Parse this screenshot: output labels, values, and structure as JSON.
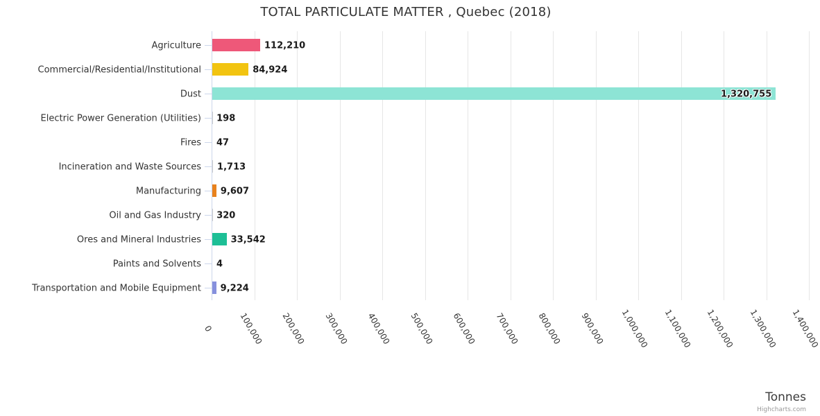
{
  "title": "TOTAL PARTICULATE MATTER , Quebec (2018)",
  "credits_label": "Highcharts.com",
  "chart_data": {
    "type": "bar",
    "title": "TOTAL PARTICULATE MATTER , Quebec (2018)",
    "orientation": "horizontal",
    "categories": [
      "Agriculture",
      "Commercial/Residential/Institutional",
      "Dust",
      "Electric Power Generation (Utilities)",
      "Fires",
      "Incineration and Waste Sources",
      "Manufacturing",
      "Oil and Gas Industry",
      "Ores and Mineral Industries",
      "Paints and Solvents",
      "Transportation and Mobile Equipment"
    ],
    "values": [
      112210,
      84924,
      1320755,
      198,
      47,
      1713,
      9607,
      320,
      33542,
      4,
      9224
    ],
    "value_labels": [
      "112,210",
      "84,924",
      "1,320,755",
      "198",
      "47",
      "1,713",
      "9,607",
      "320",
      "33,542",
      "4",
      "9,224"
    ],
    "bar_colors": [
      "#ee5879",
      "#f2c411",
      "#8de4d5",
      "#cccccc",
      "#cccccc",
      "#cccccc",
      "#e8821d",
      "#cccccc",
      "#1dbf96",
      "#cccccc",
      "#8690dd"
    ],
    "xlabel": "",
    "ylabel": "Tonnes",
    "xlim": [
      0,
      1400000
    ],
    "tick_interval": 100000,
    "x_tick_labels": [
      "0",
      "100,000",
      "200,000",
      "300,000",
      "400,000",
      "500,000",
      "600,000",
      "700,000",
      "800,000",
      "900,000",
      "1,000,000",
      "1,100,000",
      "1,200,000",
      "1,300,000",
      "1,400,000"
    ],
    "grid": true,
    "legend": false,
    "grid_color": "#e6e6e6",
    "axis_line_color": "#ccd6eb",
    "label_rotation_deg": 60
  }
}
